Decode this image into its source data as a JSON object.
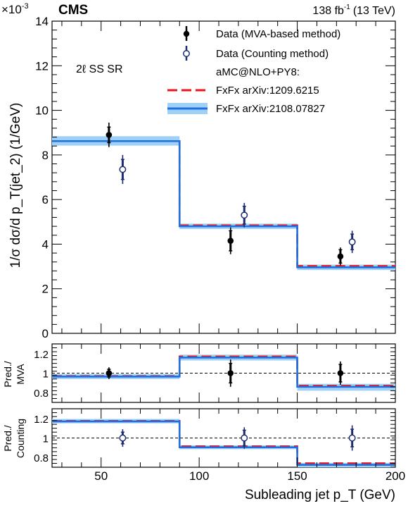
{
  "header": {
    "experiment": "CMS",
    "luminosity": "138 fb",
    "lumi_exp": "-1",
    "energy": "(13 TeV)",
    "exponent": "×10",
    "exponent_power": "-3"
  },
  "region_label": "2ℓ SS SR",
  "colors": {
    "data": "#000000",
    "counting": "#1c2c6e",
    "fxfx_1209": "#e8141e",
    "fxfx_2108": "#1f6fe0",
    "band": "#9fd0f5"
  },
  "chart_data": [
    {
      "id": "main",
      "type": "line",
      "ylabel": "1/σ dσ/d p_T(jet_2) (1/GeV)",
      "ylim": [
        0,
        14
      ],
      "yticks": [
        0,
        2,
        4,
        6,
        8,
        10,
        12,
        14
      ],
      "y_scale_note": "×10^-3",
      "bin_edges": [
        25,
        90,
        150,
        200
      ],
      "legend": {
        "position": "top-right",
        "entries": [
          "Data (MVA-based method)",
          "Data (Counting method)",
          "aMC@NLO+PY8:",
          "FxFx arXiv:1209.6215",
          "FxFx arXiv:2108.07827"
        ]
      },
      "series": [
        {
          "name": "FxFx arXiv:1209.6215",
          "values": [
            8.62,
            4.84,
            3.02
          ]
        },
        {
          "name": "FxFx arXiv:2108.07827",
          "values": [
            8.62,
            4.8,
            2.96
          ],
          "band": [
            [
              8.42,
              8.84
            ],
            [
              4.68,
              4.92
            ],
            [
              2.84,
              3.08
            ]
          ]
        },
        {
          "name": "Data (MVA-based method)",
          "x": [
            54,
            116,
            172
          ],
          "y": [
            8.9,
            4.15,
            3.45
          ],
          "stat": [
            0.35,
            0.45,
            0.3
          ],
          "tot": [
            0.55,
            0.6,
            0.4
          ]
        },
        {
          "name": "Data (Counting method)",
          "x": [
            61,
            123,
            178
          ],
          "y": [
            7.35,
            5.3,
            4.1
          ],
          "stat": [
            0.45,
            0.4,
            0.35
          ],
          "tot": [
            0.65,
            0.55,
            0.5
          ]
        }
      ]
    },
    {
      "id": "ratio_mva",
      "type": "line",
      "ylabel_lines": [
        "Pred./",
        "MVA"
      ],
      "ylim": [
        0.7,
        1.3
      ],
      "yticks": [
        0.8,
        1,
        1.2
      ],
      "bin_edges": [
        25,
        90,
        150,
        200
      ],
      "series": [
        {
          "name": "FxFx arXiv:1209.6215",
          "values": [
            0.97,
            1.17,
            0.87
          ]
        },
        {
          "name": "FxFx arXiv:2108.07827",
          "values": [
            0.965,
            1.16,
            0.86
          ],
          "band": [
            [
              0.94,
              0.99
            ],
            [
              1.13,
              1.19
            ],
            [
              0.82,
              0.89
            ]
          ]
        },
        {
          "name": "Data (MVA-based method)",
          "x": [
            54,
            116,
            172
          ],
          "y": [
            1.0,
            1.0,
            1.0
          ],
          "stat": [
            0.04,
            0.1,
            0.09
          ],
          "tot": [
            0.06,
            0.14,
            0.12
          ]
        }
      ]
    },
    {
      "id": "ratio_counting",
      "type": "line",
      "ylabel_lines": [
        "Pred./",
        "Counting"
      ],
      "ylim": [
        0.7,
        1.3
      ],
      "yticks": [
        0.8,
        1,
        1.2
      ],
      "xlabel": "Subleading jet p_T (GeV)",
      "xticks": [
        50,
        100,
        150,
        200
      ],
      "bin_edges": [
        25,
        90,
        150,
        200
      ],
      "series": [
        {
          "name": "FxFx arXiv:1209.6215",
          "values": [
            1.175,
            0.915,
            0.74
          ]
        },
        {
          "name": "FxFx arXiv:2108.07827",
          "values": [
            1.17,
            0.905,
            0.725
          ],
          "band": [
            [
              1.15,
              1.195
            ],
            [
              0.885,
              0.925
            ],
            [
              0.7,
              0.745
            ]
          ]
        },
        {
          "name": "Data (Counting method)",
          "x": [
            61,
            123,
            178
          ],
          "y": [
            1.0,
            1.0,
            1.0
          ],
          "stat": [
            0.06,
            0.08,
            0.09
          ],
          "tot": [
            0.09,
            0.11,
            0.13
          ]
        }
      ]
    }
  ]
}
